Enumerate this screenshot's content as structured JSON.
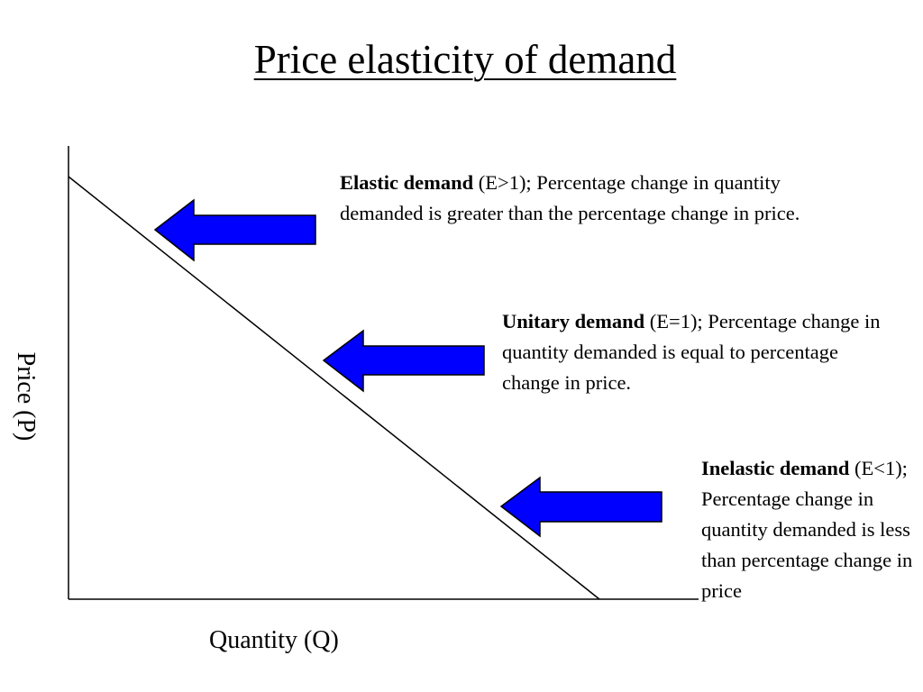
{
  "title": "Price elasticity of demand",
  "axes": {
    "x_label": "Quantity (Q)",
    "y_label": "Price (P)"
  },
  "colors": {
    "arrow_fill": "#0000ff",
    "line": "#000000",
    "background": "#ffffff"
  },
  "annotations": [
    {
      "term": "Elastic demand",
      "description": " (E>1); Percentage change in quantity demanded is greater than the percentage change in price."
    },
    {
      "term": "Unitary demand",
      "description": " (E=1); Percentage change in quantity demanded is equal to percentage change in price."
    },
    {
      "term": "Inelastic demand",
      "description": " (E<1); Percentage change in quantity demanded is less than percentage change in price"
    }
  ]
}
